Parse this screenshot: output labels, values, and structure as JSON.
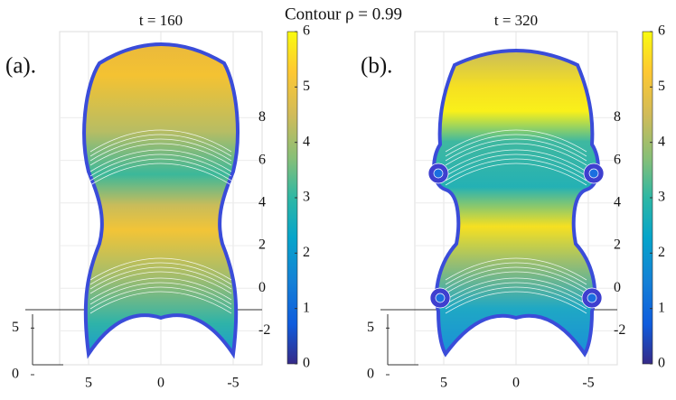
{
  "title": "Contour ρ = 0.99",
  "chart_data": [
    {
      "type": "surface3d",
      "panel_label": "(a).",
      "title": "t = 160",
      "xlim": [
        7,
        -7
      ],
      "xticks": [
        5,
        0,
        -5
      ],
      "ylim": [
        0,
        6
      ],
      "yticks": [
        5,
        0
      ],
      "zlim": [
        -3,
        9.5
      ],
      "zticks": [
        8,
        6,
        4,
        2,
        0,
        -2
      ],
      "clim": [
        0,
        6
      ],
      "cticks": [
        0,
        1,
        2,
        3,
        4,
        5,
        6
      ],
      "grid": true
    },
    {
      "type": "surface3d",
      "panel_label": "(b).",
      "title": "t = 320",
      "xlim": [
        7,
        -7
      ],
      "xticks": [
        5,
        0,
        -5
      ],
      "ylim": [
        0,
        6
      ],
      "yticks": [
        5,
        0
      ],
      "zlim": [
        -3,
        9.5
      ],
      "zticks": [
        8,
        6,
        4,
        2,
        0,
        -2
      ],
      "clim": [
        0,
        6
      ],
      "cticks": [
        0,
        1,
        2,
        3,
        4,
        5,
        6
      ],
      "grid": true
    }
  ]
}
